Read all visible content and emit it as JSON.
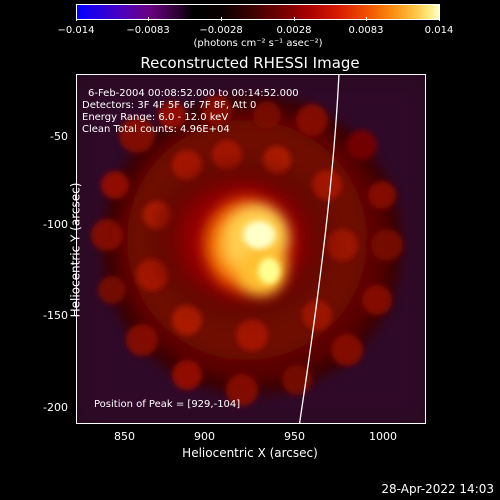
{
  "colorbar": {
    "tick_labels": [
      "−0.014",
      "−0.0083",
      "−0.0028",
      "0.0028",
      "0.0083",
      "0.014"
    ],
    "units": "(photons cm⁻² s⁻¹ asec⁻²)",
    "colors": [
      "#0000ff",
      "#ffffff",
      "#00000f",
      "#0a0000",
      "#3a0000",
      "#6e0000",
      "#a80000",
      "#d61a00",
      "#f05000",
      "#fb8c10",
      "#ffc040",
      "#ffe87a",
      "#ffffc8"
    ]
  },
  "title": "Reconstructed RHESSI Image",
  "info": {
    "time_range": "6-Feb-2004 00:08:52.000 to 00:14:52.000",
    "detectors": "Detectors: 3F 4F 5F 6F 7F 8F, Att 0",
    "energy_range": "Energy Range: 6.0 - 12.0 keV",
    "clean": "Clean    Total counts: 4.96E+04",
    "peak": "Position of Peak = [929,-104]"
  },
  "axes": {
    "xlabel": "Heliocentric X (arcsec)",
    "ylabel": "Heliocentric Y (arcsec)",
    "xticks": [
      "850",
      "900",
      "950",
      "1000"
    ],
    "yticks": [
      "-50",
      "-100",
      "-150",
      "-200"
    ]
  },
  "timestamp": "28-Apr-2022 14:03"
}
